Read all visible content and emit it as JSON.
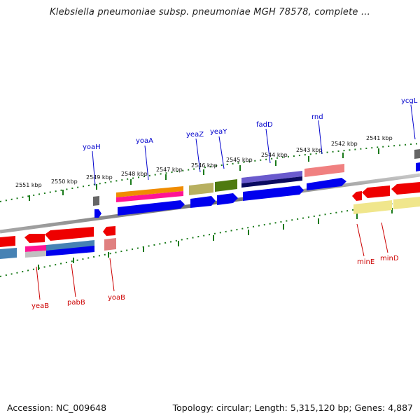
{
  "title": "Klebsiella pneumoniae subsp. pneumoniae MGH 78578, complete ...",
  "footer": {
    "accession": "Accession: NC_009648",
    "summary": "Topology: circular; Length: 5,315,120 bp; Genes: 4,887"
  },
  "scale_labels": [
    "2551 kbp",
    "2550 kbp",
    "2549 kbp",
    "2548 kbp",
    "2547 kbp",
    "2546 kbp",
    "2545 kbp",
    "2544 kbp",
    "2543 kbp",
    "2542 kbp",
    "2541 kbp"
  ],
  "top_genes": [
    "yoaH",
    "yoaA",
    "yeaZ",
    "yeaY",
    "fadD",
    "rnd",
    "ycgL"
  ],
  "bottom_genes": [
    "yeaB",
    "pabB",
    "yoaB",
    "minE",
    "minD"
  ],
  "colors": {
    "top_label": "#0000cc",
    "bottom_label": "#cc0000",
    "tick": "#1a7a1a",
    "backbone": "#808080"
  }
}
